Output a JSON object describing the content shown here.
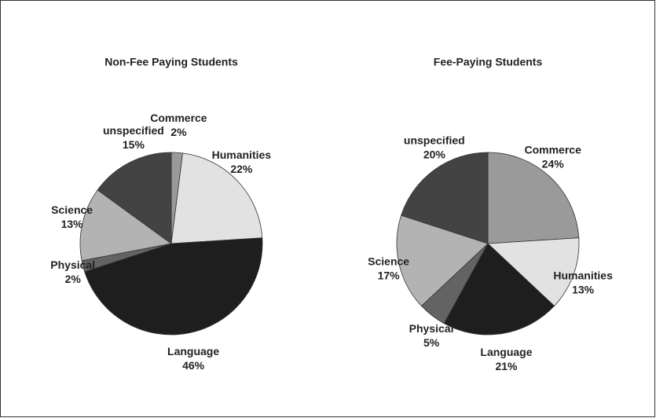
{
  "chart_data": [
    {
      "type": "pie",
      "title": "Non-Fee Paying Students",
      "categories": [
        "Commerce",
        "Humanities",
        "Language",
        "Physical",
        "Science",
        "unspecified"
      ],
      "values": [
        2,
        22,
        46,
        2,
        13,
        15
      ],
      "value_labels": [
        "2%",
        "22%",
        "46%",
        "2%",
        "13%",
        "15%"
      ],
      "colors": [
        "#9a9a9a",
        "#e2e2e2",
        "#1e1e1e",
        "#636363",
        "#b3b3b3",
        "#434343"
      ]
    },
    {
      "type": "pie",
      "title": "Fee-Paying Students",
      "categories": [
        "Commerce",
        "Humanities",
        "Language",
        "Physical",
        "Science",
        "unspecified"
      ],
      "values": [
        24,
        13,
        21,
        5,
        17,
        20
      ],
      "value_labels": [
        "24%",
        "13%",
        "21%",
        "5%",
        "17%",
        "20%"
      ],
      "colors": [
        "#9a9a9a",
        "#e2e2e2",
        "#1e1e1e",
        "#636363",
        "#b3b3b3",
        "#434343"
      ]
    }
  ]
}
